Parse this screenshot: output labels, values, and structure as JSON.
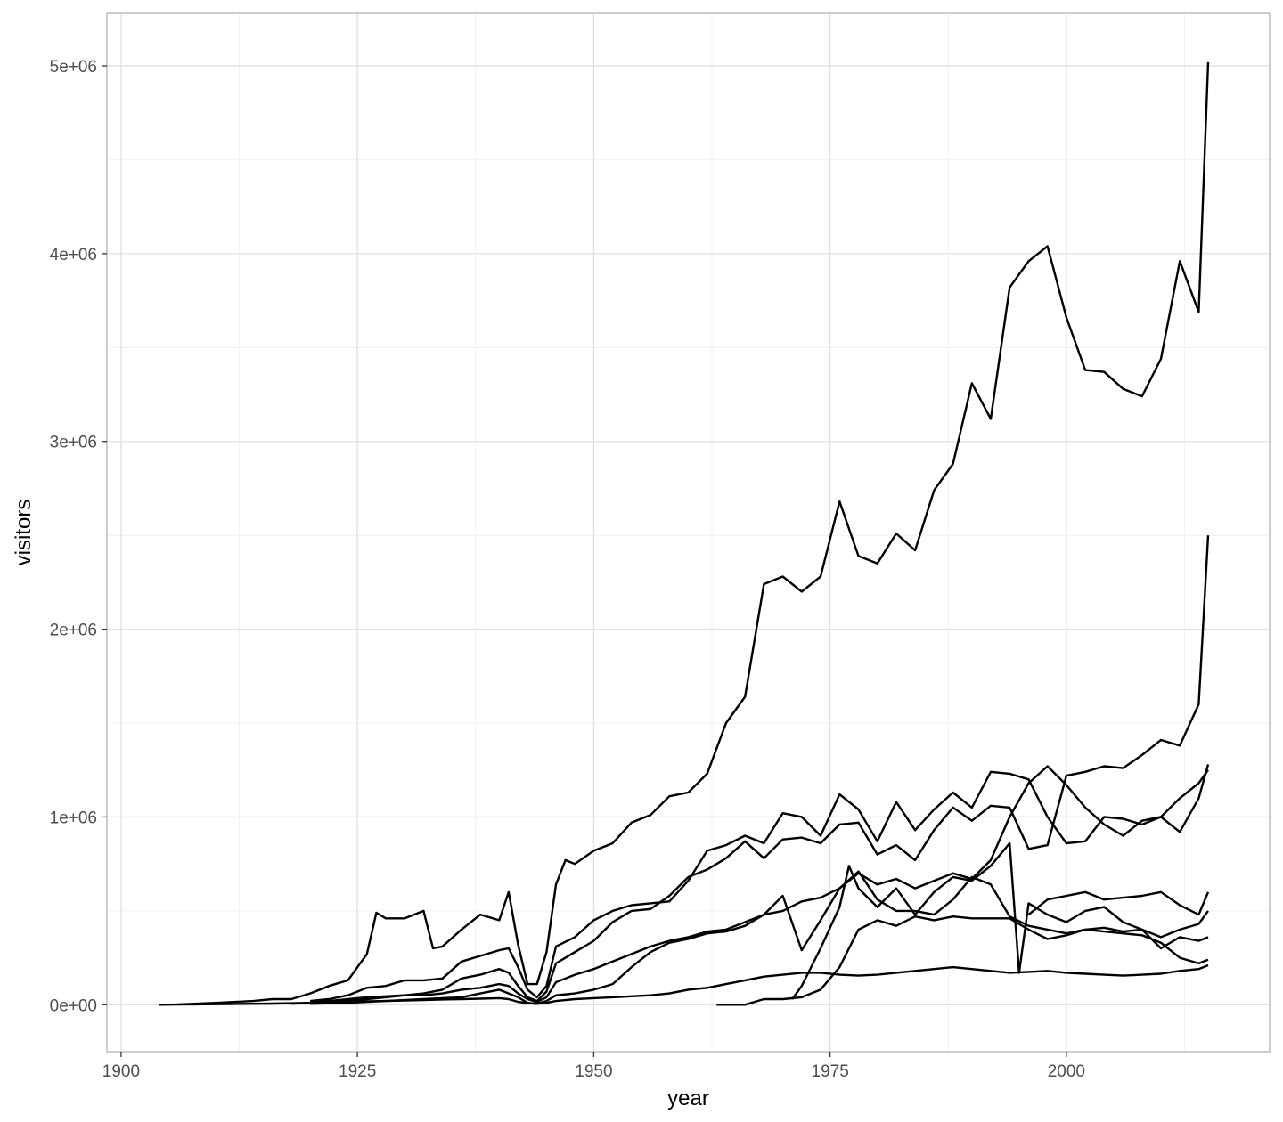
{
  "chart_data": {
    "type": "line",
    "title": "",
    "xlabel": "year",
    "ylabel": "visitors",
    "xlim": [
      1898.5,
      2021.5
    ],
    "ylim": [
      -250000,
      5280000
    ],
    "x_ticks": [
      1900,
      1925,
      1950,
      1975,
      2000
    ],
    "x_tick_labels": [
      "1900",
      "1925",
      "1950",
      "1975",
      "2000"
    ],
    "x_minor_ticks": [
      1912.5,
      1937.5,
      1962.5,
      1987.5,
      2012.5
    ],
    "y_ticks": [
      0,
      1000000,
      2000000,
      3000000,
      4000000,
      5000000
    ],
    "y_tick_labels": [
      "0e+00",
      "1e+06",
      "2e+06",
      "3e+06",
      "4e+06",
      "5e+06"
    ],
    "y_minor_ticks": [
      500000,
      1500000,
      2500000,
      3500000,
      4500000
    ],
    "grid": true,
    "legend": "none",
    "line_color": "#000000",
    "series": [
      {
        "x": [
          1904,
          1906,
          1908,
          1910,
          1912,
          1914,
          1916,
          1918,
          1920,
          1922,
          1924,
          1926,
          1928,
          1930,
          1932,
          1934,
          1936,
          1938,
          1940,
          1941,
          1942,
          1943,
          1944,
          1945,
          1946,
          1948,
          1950,
          1952,
          1954,
          1956,
          1958,
          1960,
          1962,
          1964,
          1966,
          1968,
          1970,
          1972,
          1974,
          1976,
          1978,
          1980,
          1982,
          1984,
          1986,
          1988,
          1990,
          1992,
          1994,
          1996,
          1998,
          2000,
          2002,
          2004,
          2006,
          2008,
          2010,
          2012,
          2014,
          2015
        ],
        "y": [
          0,
          1000,
          2000,
          3000,
          4000,
          5000,
          6000,
          8000,
          10000,
          12000,
          15000,
          18000,
          20000,
          22000,
          25000,
          28000,
          30000,
          32000,
          35000,
          30000,
          15000,
          8000,
          5000,
          10000,
          20000,
          30000,
          35000,
          40000,
          45000,
          50000,
          60000,
          80000,
          90000,
          110000,
          130000,
          150000,
          160000,
          170000,
          170000,
          160000,
          155000,
          160000,
          170000,
          180000,
          190000,
          200000,
          190000,
          180000,
          170000,
          175000,
          180000,
          170000,
          165000,
          160000,
          155000,
          160000,
          165000,
          180000,
          190000,
          210000
        ]
      },
      {
        "x": [
          1906,
          1910,
          1914,
          1916,
          1918,
          1920,
          1922,
          1924,
          1925,
          1926,
          1927,
          1928,
          1930,
          1932,
          1933,
          1934,
          1936,
          1938,
          1940,
          1941,
          1942,
          1943,
          1944,
          1945,
          1946,
          1947,
          1948,
          1950,
          1952,
          1954,
          1956,
          1958,
          1960,
          1962,
          1964,
          1966,
          1968,
          1970,
          1972,
          1974,
          1976,
          1978,
          1980,
          1982,
          1984,
          1986,
          1988,
          1990,
          1992,
          1994,
          1996,
          1998,
          2000,
          2002,
          2004,
          2006,
          2008,
          2010,
          2012,
          2014,
          2015
        ],
        "y": [
          2000,
          10000,
          20000,
          30000,
          30000,
          60000,
          100000,
          130000,
          200000,
          270000,
          490000,
          460000,
          460000,
          500000,
          300000,
          310000,
          400000,
          480000,
          450000,
          600000,
          320000,
          110000,
          110000,
          280000,
          640000,
          770000,
          750000,
          820000,
          860000,
          970000,
          1010000,
          1110000,
          1130000,
          1230000,
          1500000,
          1640000,
          2240000,
          2280000,
          2200000,
          2280000,
          2680000,
          2390000,
          2350000,
          2510000,
          2420000,
          2740000,
          2880000,
          3310000,
          3120000,
          3820000,
          3960000,
          4040000,
          3660000,
          3380000,
          3370000,
          3280000,
          3240000,
          3440000,
          3960000,
          3690000,
          5020000
        ]
      },
      {
        "x": [
          1920,
          1922,
          1924,
          1926,
          1928,
          1930,
          1932,
          1934,
          1936,
          1938,
          1940,
          1941,
          1942,
          1943,
          1944,
          1945,
          1946,
          1948,
          1950,
          1952,
          1954,
          1956,
          1958,
          1960,
          1962,
          1964,
          1966,
          1968,
          1970,
          1972,
          1974,
          1976,
          1978,
          1980,
          1982,
          1984,
          1986,
          1988,
          1990,
          1992,
          1994,
          1996,
          1998,
          2000,
          2002,
          2004,
          2006,
          2008,
          2010,
          2012,
          2014,
          2015
        ],
        "y": [
          20000,
          30000,
          50000,
          90000,
          100000,
          130000,
          130000,
          140000,
          230000,
          260000,
          290000,
          300000,
          200000,
          80000,
          40000,
          100000,
          310000,
          360000,
          450000,
          500000,
          530000,
          540000,
          550000,
          660000,
          820000,
          850000,
          900000,
          860000,
          1020000,
          1000000,
          900000,
          1120000,
          1040000,
          870000,
          1080000,
          930000,
          1040000,
          1130000,
          1050000,
          1240000,
          1230000,
          1200000,
          1000000,
          860000,
          870000,
          1000000,
          990000,
          960000,
          1000000,
          920000,
          1100000,
          1280000
        ]
      },
      {
        "x": [
          1920,
          1922,
          1924,
          1926,
          1928,
          1930,
          1932,
          1934,
          1936,
          1938,
          1940,
          1941,
          1942,
          1943,
          1944,
          1945,
          1946,
          1948,
          1950,
          1952,
          1954,
          1956,
          1958,
          1960,
          1962,
          1964,
          1966,
          1968,
          1970,
          1972,
          1974,
          1976,
          1978,
          1980,
          1982,
          1984,
          1986,
          1988,
          1990,
          1992,
          1994,
          1996,
          1998,
          2000,
          2002,
          2004,
          2006,
          2008,
          2010,
          2012,
          2014,
          2015
        ],
        "y": [
          10000,
          20000,
          30000,
          40000,
          45000,
          50000,
          60000,
          80000,
          140000,
          160000,
          190000,
          170000,
          100000,
          40000,
          20000,
          70000,
          220000,
          280000,
          340000,
          440000,
          500000,
          510000,
          580000,
          680000,
          720000,
          780000,
          870000,
          780000,
          880000,
          890000,
          860000,
          960000,
          970000,
          800000,
          850000,
          770000,
          930000,
          1050000,
          980000,
          1060000,
          1050000,
          830000,
          850000,
          1220000,
          1240000,
          1270000,
          1260000,
          1330000,
          1410000,
          1380000,
          1600000,
          2500000
        ]
      },
      {
        "x": [
          1918,
          1920,
          1922,
          1924,
          1926,
          1928,
          1930,
          1932,
          1934,
          1936,
          1938,
          1940,
          1941,
          1942,
          1943,
          1944,
          1945,
          1946,
          1948,
          1950,
          1952,
          1954,
          1956,
          1958,
          1960,
          1962,
          1964,
          1966,
          1968,
          1970,
          1972,
          1974,
          1976,
          1978,
          1980,
          1982,
          1984,
          1986,
          1988,
          1990,
          1992,
          1994,
          1996,
          1998,
          2000,
          2002,
          2004,
          2006,
          2008,
          2010,
          2012,
          2014,
          2015
        ],
        "y": [
          5000,
          10000,
          15000,
          20000,
          30000,
          40000,
          50000,
          50000,
          60000,
          80000,
          90000,
          110000,
          100000,
          60000,
          30000,
          15000,
          40000,
          120000,
          160000,
          190000,
          230000,
          270000,
          310000,
          340000,
          360000,
          390000,
          400000,
          440000,
          480000,
          500000,
          550000,
          570000,
          620000,
          700000,
          640000,
          670000,
          620000,
          660000,
          700000,
          670000,
          770000,
          1000000,
          1180000,
          1270000,
          1170000,
          1050000,
          960000,
          900000,
          980000,
          1000000,
          1100000,
          1180000,
          1250000
        ]
      },
      {
        "x": [
          1920,
          1924,
          1928,
          1932,
          1936,
          1938,
          1940,
          1942,
          1943,
          1944,
          1945,
          1946,
          1948,
          1950,
          1952,
          1954,
          1956,
          1958,
          1960,
          1962,
          1964,
          1966,
          1968,
          1970,
          1972,
          1974,
          1976,
          1978,
          1980,
          1982,
          1984,
          1986,
          1988,
          1990,
          1992,
          1994,
          1996,
          1998,
          2000,
          2002,
          2004,
          2006,
          2008,
          2010,
          2012,
          2014,
          2015
        ],
        "y": [
          5000,
          10000,
          20000,
          30000,
          40000,
          60000,
          80000,
          40000,
          10000,
          5000,
          20000,
          50000,
          60000,
          80000,
          110000,
          200000,
          280000,
          330000,
          350000,
          380000,
          390000,
          420000,
          480000,
          580000,
          290000,
          450000,
          620000,
          710000,
          560000,
          500000,
          500000,
          480000,
          560000,
          680000,
          640000,
          470000,
          420000,
          400000,
          380000,
          400000,
          390000,
          380000,
          370000,
          330000,
          250000,
          220000,
          240000
        ]
      },
      {
        "x": [
          1963,
          1966,
          1968,
          1970,
          1972,
          1974,
          1976,
          1978,
          1980,
          1982,
          1984,
          1986,
          1988,
          1990,
          1992,
          1994,
          1996,
          1998,
          2000,
          2002,
          2004,
          2006,
          2008,
          2010,
          2012,
          2014,
          2015
        ],
        "y": [
          0,
          0,
          30000,
          30000,
          40000,
          80000,
          200000,
          400000,
          450000,
          420000,
          470000,
          450000,
          470000,
          460000,
          460000,
          460000,
          400000,
          350000,
          370000,
          400000,
          410000,
          390000,
          400000,
          360000,
          400000,
          430000,
          500000
        ]
      },
      {
        "x": [
          1971,
          1972,
          1974,
          1976,
          1977,
          1978,
          1980,
          1982,
          1984,
          1986,
          1988,
          1990,
          1992,
          1994,
          1995,
          1996,
          1998,
          2000,
          2002,
          2004,
          2006,
          2008,
          2010,
          2012,
          2014,
          2015
        ],
        "y": [
          30000,
          100000,
          300000,
          520000,
          740000,
          620000,
          520000,
          620000,
          480000,
          600000,
          680000,
          660000,
          740000,
          860000,
          170000,
          540000,
          480000,
          440000,
          500000,
          520000,
          440000,
          400000,
          300000,
          360000,
          340000,
          360000
        ]
      },
      {
        "x": [
          1996,
          1998,
          2000,
          2002,
          2004,
          2006,
          2008,
          2010,
          2012,
          2014,
          2015
        ],
        "y": [
          480000,
          560000,
          580000,
          600000,
          560000,
          570000,
          580000,
          600000,
          530000,
          480000,
          600000
        ]
      }
    ]
  }
}
